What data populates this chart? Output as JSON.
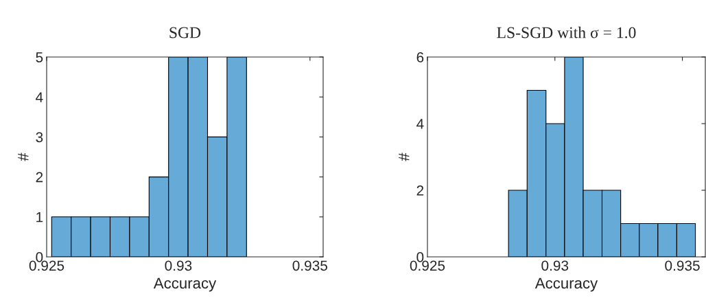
{
  "chart_data": [
    {
      "type": "histogram",
      "title": "SGD",
      "xlabel": "Accuracy",
      "ylabel": "#",
      "color": "#66aad7",
      "bins": [
        0.92519,
        0.92593,
        0.92667,
        0.92741,
        0.92815,
        0.92889,
        0.92963,
        0.93037,
        0.93111,
        0.93185,
        0.93259
      ],
      "values": [
        1,
        1,
        1,
        1,
        1,
        2,
        5,
        5,
        3,
        5
      ],
      "xlim": [
        0.925,
        0.9355
      ],
      "xticks": [
        0.925,
        0.93,
        0.935
      ],
      "ylim": [
        0,
        5
      ],
      "yticks": [
        0,
        1,
        2,
        3,
        4,
        5
      ],
      "grid": false
    },
    {
      "type": "histogram",
      "title": "LS-SGD with σ = 1.0",
      "xlabel": "Accuracy",
      "ylabel": "#",
      "color": "#66aad7",
      "bins": [
        0.92818,
        0.92891,
        0.92965,
        0.93038,
        0.93111,
        0.93185,
        0.93258,
        0.93331,
        0.93404,
        0.93478,
        0.93551
      ],
      "values": [
        2,
        5,
        4,
        6,
        2,
        2,
        1,
        1,
        1,
        1
      ],
      "xlim": [
        0.925,
        0.9359
      ],
      "xticks": [
        0.925,
        0.93,
        0.935
      ],
      "ylim": [
        0,
        6
      ],
      "yticks": [
        0,
        2,
        4,
        6
      ],
      "grid": false
    }
  ]
}
